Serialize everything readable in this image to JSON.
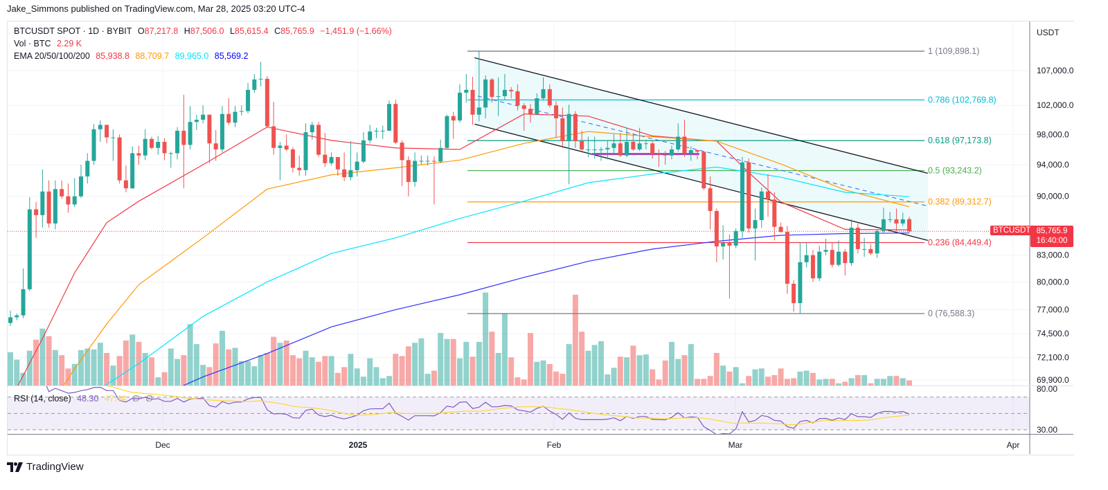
{
  "publisher": "Jake_Simmons published on TradingView.com, Mar 28, 2025 03:20 UTC-4",
  "legend": {
    "symbol": "BTCUSDT SPOT · 1D · BYBIT",
    "o_label": "O",
    "o": "87,217.8",
    "h_label": "H",
    "h": "87,506.0",
    "l_label": "L",
    "l": "85,615.4",
    "c_label": "C",
    "c": "85,765.9",
    "change": "−1,451.9 (−1.66%)",
    "vol_label": "Vol · BTC",
    "vol": "2.29 K",
    "ema_label": "EMA 20/50/100/200",
    "ema20": "85,938.8",
    "ema50": "88,709.7",
    "ema100": "89,965.0",
    "ema200": "85,569.2",
    "rsi_label": "RSI (14, close)",
    "rsi": "48.30",
    "rsi_ma": "47.44",
    "rsi_extra1": "∅",
    "rsi_extra2": "∅"
  },
  "currency": "USDT",
  "price_tag": {
    "symbol": "BTCUSDT",
    "price": "85,765.9",
    "countdown": "16:40:00"
  },
  "time_axis": [
    "Dec",
    "2025",
    "Feb",
    "Mar",
    "Apr"
  ],
  "rsi_axis": [
    "80.00",
    "30.00"
  ],
  "logo_text": "TradingView",
  "colors": {
    "up": "#26a69a",
    "down": "#ef5350",
    "ema20": "#f23645",
    "ema50": "#ff9800",
    "ema100": "#00e5ff",
    "ema200": "#3030ff",
    "rsi": "#7e57c2",
    "rsi_ma": "#fdd835",
    "channel": "#131722",
    "channel_fill": "#e0f7fa"
  },
  "chart_data": {
    "type": "candlestick",
    "scale": "log",
    "grid": true,
    "price_axis": [
      "107,000.0",
      "102,000.0",
      "98,000.0",
      "94,000.0",
      "90,000.0",
      "83,000.0",
      "80,000.0",
      "77,000.0",
      "74,500.0",
      "72,100.0",
      "69,900.0"
    ],
    "ohlc": [
      [
        75600,
        76900,
        75300,
        76200
      ],
      [
        76200,
        76600,
        75900,
        76400
      ],
      [
        76400,
        81500,
        76100,
        79200
      ],
      [
        79200,
        89900,
        79000,
        88400
      ],
      [
        88400,
        89300,
        85000,
        87700
      ],
      [
        87700,
        93400,
        86200,
        90600
      ],
      [
        90600,
        92000,
        86200,
        86700
      ],
      [
        86700,
        92000,
        86000,
        90900
      ],
      [
        90900,
        92000,
        89700,
        90000
      ],
      [
        90000,
        91600,
        88000,
        89000
      ],
      [
        89000,
        92300,
        88700,
        90000
      ],
      [
        90000,
        94000,
        89800,
        92500
      ],
      [
        92500,
        95500,
        91600,
        94500
      ],
      [
        94500,
        99400,
        94000,
        98700
      ],
      [
        98700,
        99900,
        97000,
        99300
      ],
      [
        99300,
        99300,
        96800,
        97600
      ],
      [
        97600,
        98700,
        94500,
        97600
      ],
      [
        97600,
        98000,
        91600,
        92000
      ],
      [
        92000,
        93900,
        90500,
        91000
      ],
      [
        91000,
        96400,
        90900,
        95500
      ],
      [
        95500,
        96500,
        94000,
        95200
      ],
      [
        95200,
        98700,
        94600,
        97400
      ],
      [
        97400,
        97700,
        96000,
        96200
      ],
      [
        96200,
        97800,
        95300,
        97000
      ],
      [
        97000,
        97500,
        94600,
        95500
      ],
      [
        95500,
        95700,
        93600,
        95500
      ],
      [
        95500,
        99000,
        94700,
        98500
      ],
      [
        98500,
        103500,
        91000,
        96600
      ],
      [
        96600,
        101900,
        96000,
        99700
      ],
      [
        99700,
        100700,
        98600,
        100000
      ],
      [
        100000,
        102000,
        99500,
        100700
      ],
      [
        100700,
        100700,
        94200,
        96800
      ],
      [
        96800,
        98600,
        94500,
        96000
      ],
      [
        96000,
        101900,
        95600,
        100800
      ],
      [
        100800,
        103000,
        99300,
        99600
      ],
      [
        99600,
        101900,
        99000,
        101100
      ],
      [
        101100,
        102000,
        100600,
        101200
      ],
      [
        101200,
        105200,
        100900,
        104200
      ],
      [
        104200,
        106500,
        103800,
        105700
      ],
      [
        105700,
        108300,
        104700,
        105800
      ],
      [
        105800,
        106200,
        98900,
        99100
      ],
      [
        99100,
        102500,
        95300,
        96200
      ],
      [
        96200,
        97000,
        92000,
        96500
      ],
      [
        96500,
        98000,
        95800,
        96000
      ],
      [
        96000,
        96300,
        93000,
        93600
      ],
      [
        93600,
        95200,
        92600,
        93300
      ],
      [
        93300,
        99500,
        92600,
        98300
      ],
      [
        98300,
        99700,
        97300,
        99300
      ],
      [
        99300,
        99700,
        95000,
        95300
      ],
      [
        95300,
        98200,
        93700,
        94200
      ],
      [
        94200,
        95600,
        93900,
        95000
      ],
      [
        95000,
        95000,
        92600,
        93400
      ],
      [
        93400,
        95600,
        91900,
        92400
      ],
      [
        92400,
        97100,
        92000,
        93300
      ],
      [
        93300,
        95600,
        92500,
        94400
      ],
      [
        94400,
        98300,
        94200,
        97200
      ],
      [
        97200,
        99300,
        96800,
        98400
      ],
      [
        98400,
        98900,
        97500,
        98500
      ],
      [
        98500,
        99200,
        97400,
        98500
      ],
      [
        98500,
        102700,
        98500,
        102200
      ],
      [
        102200,
        102800,
        96700,
        96900
      ],
      [
        96900,
        97200,
        91300,
        94600
      ],
      [
        94600,
        95100,
        90000,
        91800
      ],
      [
        91800,
        95600,
        91200,
        94500
      ],
      [
        94500,
        95200,
        94000,
        94500
      ],
      [
        94500,
        95200,
        93900,
        94500
      ],
      [
        94500,
        95100,
        89000,
        94400
      ],
      [
        94400,
        97300,
        94200,
        96200
      ],
      [
        96200,
        100700,
        96000,
        100500
      ],
      [
        100500,
        101100,
        97400,
        99900
      ],
      [
        99900,
        105000,
        99600,
        103800
      ],
      [
        103800,
        106500,
        102400,
        104200
      ],
      [
        104200,
        106100,
        99300,
        100700
      ],
      [
        100700,
        109900,
        99800,
        101700
      ],
      [
        101700,
        106300,
        100200,
        105700
      ],
      [
        105700,
        105900,
        102400,
        103200
      ],
      [
        103200,
        106000,
        100500,
        103300
      ],
      [
        103300,
        106500,
        102800,
        104200
      ],
      [
        104200,
        104600,
        103000,
        104000
      ],
      [
        104000,
        105000,
        101300,
        102000
      ],
      [
        102000,
        102300,
        98500,
        101500
      ],
      [
        101500,
        102200,
        99600,
        100800
      ],
      [
        100800,
        103700,
        100600,
        103000
      ],
      [
        103000,
        106000,
        102700,
        104300
      ],
      [
        104300,
        105000,
        101700,
        102000
      ],
      [
        102000,
        102600,
        97600,
        100200
      ],
      [
        100200,
        101700,
        96200,
        97100
      ],
      [
        97100,
        102100,
        91500,
        100800
      ],
      [
        100800,
        101200,
        96200,
        97100
      ],
      [
        97100,
        98500,
        95700,
        96000
      ],
      [
        96000,
        97700,
        95000,
        96000
      ],
      [
        96000,
        97700,
        94800,
        96000
      ],
      [
        96000,
        96300,
        94500,
        96000
      ],
      [
        96000,
        97200,
        94700,
        96200
      ],
      [
        96200,
        98000,
        95300,
        96800
      ],
      [
        96800,
        98200,
        95000,
        95200
      ],
      [
        95200,
        98900,
        95000,
        97000
      ],
      [
        97000,
        98200,
        95800,
        96000
      ],
      [
        96000,
        98900,
        95800,
        96800
      ],
      [
        96800,
        97300,
        96000,
        96800
      ],
      [
        96800,
        97200,
        94800,
        95400
      ],
      [
        95400,
        96000,
        93700,
        95300
      ],
      [
        95300,
        95800,
        94000,
        95200
      ],
      [
        95200,
        96500,
        94700,
        96000
      ],
      [
        96000,
        99500,
        95700,
        97700
      ],
      [
        97700,
        100000,
        95000,
        95500
      ],
      [
        95500,
        96400,
        94500,
        95900
      ],
      [
        95900,
        96000,
        94700,
        95700
      ],
      [
        95700,
        95700,
        90800,
        91000
      ],
      [
        91000,
        92500,
        86000,
        88200
      ],
      [
        88200,
        88500,
        82200,
        84000
      ],
      [
        84000,
        86500,
        82500,
        84400
      ],
      [
        84400,
        85400,
        78200,
        84100
      ],
      [
        84100,
        86100,
        83800,
        85800
      ],
      [
        85800,
        95000,
        85000,
        94300
      ],
      [
        94300,
        94800,
        85600,
        86100
      ],
      [
        86100,
        88500,
        82400,
        87100
      ],
      [
        87100,
        91100,
        86200,
        90600
      ],
      [
        90600,
        92800,
        87500,
        89600
      ],
      [
        89600,
        90500,
        84700,
        86300
      ],
      [
        86300,
        86800,
        85600,
        85700
      ],
      [
        85700,
        86400,
        78700,
        79800
      ],
      [
        79800,
        80200,
        76800,
        77700
      ],
      [
        77700,
        84500,
        76600,
        82200
      ],
      [
        82200,
        84400,
        81600,
        83000
      ],
      [
        83000,
        83600,
        80000,
        80400
      ],
      [
        80400,
        84100,
        80100,
        83400
      ],
      [
        83400,
        84900,
        83000,
        83600
      ],
      [
        83600,
        84500,
        81600,
        81900
      ],
      [
        81900,
        84700,
        81700,
        83400
      ],
      [
        83400,
        83700,
        80700,
        82100
      ],
      [
        82100,
        87200,
        81800,
        86200
      ],
      [
        86200,
        86700,
        83200,
        83700
      ],
      [
        83700,
        85000,
        82800,
        83700
      ],
      [
        83700,
        84300,
        83000,
        83200
      ],
      [
        83200,
        86000,
        82700,
        85800
      ],
      [
        85800,
        88600,
        85500,
        87200
      ],
      [
        87200,
        88100,
        86800,
        87200
      ],
      [
        87200,
        88500,
        85800,
        86700
      ],
      [
        86700,
        88000,
        86400,
        87200
      ],
      [
        87217.8,
        87506.0,
        85615.4,
        85765.9
      ]
    ],
    "volume_k": [
      15,
      11.7,
      5.7,
      15.7,
      20.7,
      25.7,
      22.3,
      16,
      13.7,
      7.7,
      9.7,
      16,
      16.7,
      16.3,
      19.3,
      14.7,
      9,
      13.3,
      20.3,
      23,
      19.7,
      14.7,
      12.7,
      3.7,
      6,
      16.7,
      12,
      13.7,
      27.7,
      18.7,
      9.3,
      8.3,
      19,
      24.7,
      16.3,
      17,
      11,
      11,
      8.7,
      13.7,
      14.7,
      22,
      19.3,
      20.3,
      13.7,
      12.3,
      15.7,
      12.7,
      10.7,
      13.3,
      13.3,
      5.7,
      8.3,
      14.3,
      7.7,
      4,
      12.3,
      8.3,
      3.3,
      4.3,
      14.3,
      13.3,
      17.7,
      19.3,
      21.3,
      5.3,
      6.7,
      23.7,
      21,
      21,
      12.3,
      19.7,
      13,
      19.7,
      42,
      24.3,
      14.7,
      32.7,
      12.7,
      3.7,
      2.7,
      23.7,
      10.7,
      11.3,
      9.7,
      6.3,
      5.3,
      18.7,
      41,
      24.3,
      15.7,
      18.3,
      20,
      5,
      8,
      13,
      12.7,
      18,
      13.7,
      14,
      7.3,
      2.7,
      11.3,
      19.7,
      12,
      13.7,
      18.7,
      3,
      3,
      4.3,
      14.7,
      9,
      6.3,
      8.3,
      1,
      4.3,
      7.3,
      7.7,
      4,
      4.7,
      7.7,
      3,
      3.3,
      6.3,
      6.7,
      5.7,
      2.7,
      3,
      3,
      1,
      1.7,
      3.3,
      4.7,
      4.7,
      1,
      3,
      3,
      4.3,
      4.3,
      3.3,
      2.29
    ],
    "ema": {
      "ema20": [
        [
          0,
          68000
        ],
        [
          5,
          74000
        ],
        [
          10,
          81000
        ],
        [
          15,
          86800
        ],
        [
          20,
          89400
        ],
        [
          30,
          94000
        ],
        [
          40,
          99000
        ],
        [
          50,
          97200
        ],
        [
          60,
          96200
        ],
        [
          70,
          96000
        ],
        [
          80,
          100800
        ],
        [
          90,
          100500
        ],
        [
          100,
          97800
        ],
        [
          110,
          97100
        ],
        [
          115,
          93000
        ],
        [
          120,
          89300
        ],
        [
          130,
          86000
        ],
        [
          140,
          85938.8
        ]
      ],
      "ema50": [
        [
          0,
          62000
        ],
        [
          10,
          71000
        ],
        [
          15,
          75500
        ],
        [
          20,
          79700
        ],
        [
          30,
          85000
        ],
        [
          40,
          90900
        ],
        [
          50,
          92700
        ],
        [
          60,
          93600
        ],
        [
          70,
          94600
        ],
        [
          80,
          96800
        ],
        [
          90,
          98400
        ],
        [
          100,
          97700
        ],
        [
          110,
          97100
        ],
        [
          120,
          94100
        ],
        [
          130,
          90800
        ],
        [
          140,
          88709.7
        ]
      ],
      "ema100": [
        [
          0,
          60000
        ],
        [
          10,
          67500
        ],
        [
          20,
          71500
        ],
        [
          30,
          76300
        ],
        [
          40,
          80000
        ],
        [
          50,
          83200
        ],
        [
          60,
          85000
        ],
        [
          70,
          87300
        ],
        [
          80,
          89400
        ],
        [
          90,
          91700
        ],
        [
          100,
          92800
        ],
        [
          110,
          93700
        ],
        [
          120,
          92400
        ],
        [
          130,
          90500
        ],
        [
          140,
          89965.0
        ]
      ],
      "ema200": [
        [
          20,
          67500
        ],
        [
          30,
          70200
        ],
        [
          40,
          72500
        ],
        [
          50,
          75200
        ],
        [
          60,
          77000
        ],
        [
          70,
          78600
        ],
        [
          80,
          80500
        ],
        [
          90,
          82300
        ],
        [
          100,
          83700
        ],
        [
          110,
          84600
        ],
        [
          120,
          85300
        ],
        [
          130,
          85500
        ],
        [
          140,
          85569.2
        ]
      ]
    },
    "fib_levels": [
      {
        "label": "1 (109,898.1)",
        "price": 109898.1,
        "color": "#787b86"
      },
      {
        "label": "0.786 (102,769.8)",
        "price": 102769.8,
        "color": "#00bcd4"
      },
      {
        "label": "0.618 (97,173.8)",
        "price": 97173.8,
        "color": "#089981"
      },
      {
        "label": "0.5 (93,243.2)",
        "price": 93243.2,
        "color": "#4caf50"
      },
      {
        "label": "0.382 (89,312.7)",
        "price": 89312.7,
        "color": "#ff9800"
      },
      {
        "label": "0.236 (84,449.4)",
        "price": 84449.4,
        "color": "#f23645"
      },
      {
        "label": "0 (76,588.3)",
        "price": 76588.3,
        "color": "#787b86"
      }
    ],
    "channel": {
      "upper": [
        [
          72.3,
          108900
        ],
        [
          142.9,
          92900
        ]
      ],
      "lower": [
        [
          72.3,
          99400
        ],
        [
          142.9,
          84700
        ]
      ],
      "dashed": [
        [
          72.8,
          103300
        ],
        [
          142.9,
          88800
        ]
      ],
      "purple_level": [
        [
          90.6,
          95400
        ],
        [
          107.3,
          95400
        ]
      ]
    },
    "rsi_levels": [
      70,
      50,
      30
    ]
  }
}
